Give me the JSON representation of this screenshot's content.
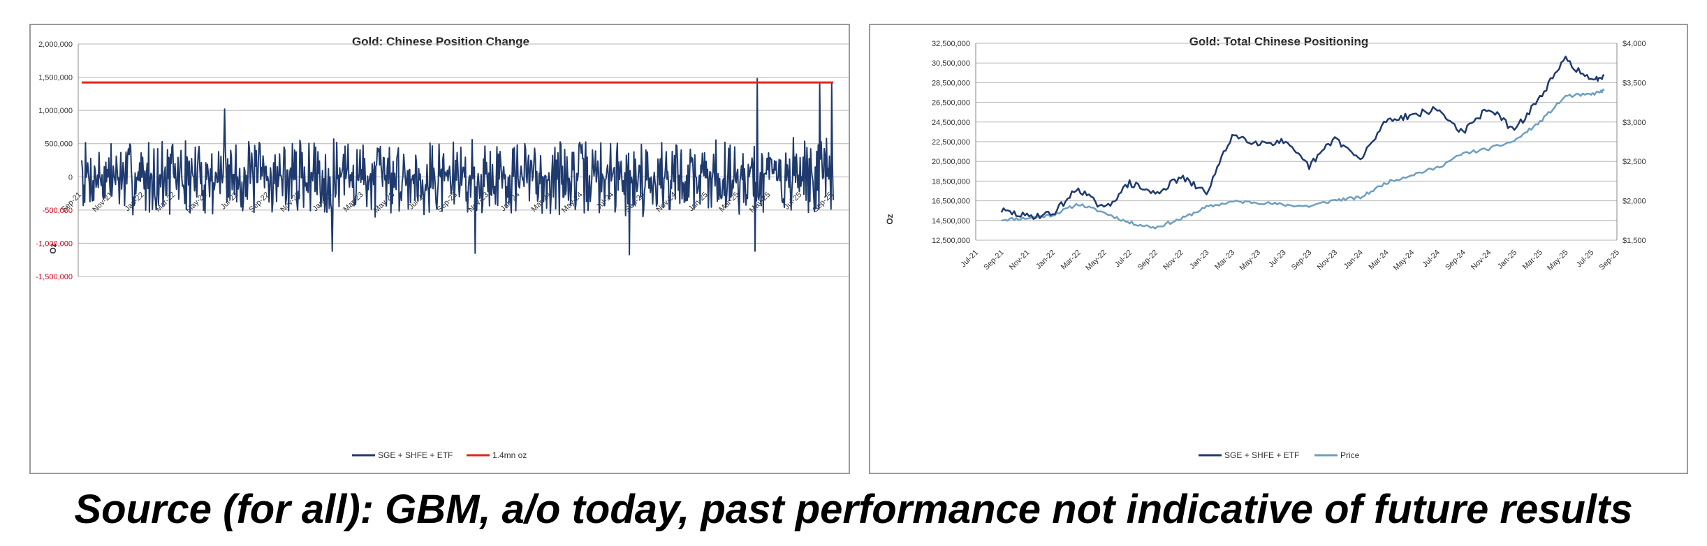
{
  "footer": {
    "source_text": "Source (for all): GBM, a/o today, past performance not indicative of future results"
  },
  "chart_data": [
    {
      "type": "line",
      "title": "Gold: Chinese Position Change",
      "ylabel": "Oz",
      "xlabel": "",
      "ylim": [
        -1500000,
        2000000
      ],
      "y_ticks": [
        "2,000,000",
        "1,500,000",
        "1,000,000",
        "500,000",
        "0",
        "-500,000",
        "-1,000,000",
        "-1,500,000"
      ],
      "negative_tick_color": "#d0021b",
      "x_ticks": [
        "Sep-21",
        "Nov-21",
        "Jan-22",
        "Mar-22",
        "May-22",
        "Jul-22",
        "Sep-22",
        "Nov-22",
        "Jan-23",
        "Mar-23",
        "May-23",
        "Jul-23",
        "Sep-23",
        "Nov-23",
        "Jan-24",
        "Mar-24",
        "May-24",
        "Jul-24",
        "Sep-24",
        "Nov-24",
        "Jan-25",
        "Mar-25",
        "May-25",
        "Jul-25",
        "Sep-25"
      ],
      "grid": true,
      "legend": "bottom",
      "series": [
        {
          "name": "SGE + SHFE + ETF",
          "color": "#1f3a6e",
          "extremes": [
            {
              "date": "Sep-21",
              "value": 250000
            },
            {
              "date": "Jun-22",
              "value": 1020000
            },
            {
              "date": "Jan-23",
              "value": -1120000
            },
            {
              "date": "Oct-23",
              "value": -1150000
            },
            {
              "date": "Aug-24",
              "value": -1170000
            },
            {
              "date": "Apr-25",
              "value": 1480000
            },
            {
              "date": "Apr-25",
              "value": -1120000
            },
            {
              "date": "Aug-25",
              "value": 1400000
            },
            {
              "date": "Sep-25",
              "value": -350000
            }
          ]
        },
        {
          "name": "1.4mn oz",
          "color": "#e0261a",
          "values": [
            1420000,
            1420000
          ]
        }
      ]
    },
    {
      "type": "line",
      "title": "Gold: Total Chinese Positioning",
      "ylabel": "Oz",
      "xlabel": "",
      "ylim": [
        12500000,
        32500000
      ],
      "y2lim": [
        1500,
        4000
      ],
      "y_ticks": [
        "32,500,000",
        "30,500,000",
        "28,500,000",
        "26,500,000",
        "24,500,000",
        "22,500,000",
        "20,500,000",
        "18,500,000",
        "16,500,000",
        "14,500,000",
        "12,500,000"
      ],
      "y2_ticks": [
        "$4,000",
        "$3,500",
        "$3,000",
        "$2,500",
        "$2,000",
        "$1,500"
      ],
      "x_ticks": [
        "Jul-21",
        "Sep-21",
        "Nov-21",
        "Jan-22",
        "Mar-22",
        "May-22",
        "Jul-22",
        "Sep-22",
        "Nov-22",
        "Jan-23",
        "Mar-23",
        "May-23",
        "Jul-23",
        "Sep-23",
        "Nov-23",
        "Jan-24",
        "Mar-24",
        "May-24",
        "Jul-24",
        "Sep-24",
        "Nov-24",
        "Jan-25",
        "Mar-25",
        "May-25",
        "Jul-25",
        "Sep-25"
      ],
      "grid": true,
      "legend": "bottom",
      "series": [
        {
          "name": "SGE + SHFE + ETF",
          "color": "#1f3a6e",
          "axis": "left",
          "x": [
            "Sep-21",
            "Nov-21",
            "Jan-22",
            "Mar-22",
            "May-22",
            "Jul-22",
            "Sep-22",
            "Nov-22",
            "Jan-23",
            "Mar-23",
            "May-23",
            "Jul-23",
            "Sep-23",
            "Nov-23",
            "Jan-24",
            "Mar-24",
            "May-24",
            "Jul-24",
            "Sep-24",
            "Nov-24",
            "Jan-25",
            "Mar-25",
            "May-25",
            "Jul-25",
            "Aug-25"
          ],
          "values": [
            15500000,
            14900000,
            15200000,
            17800000,
            15600000,
            18300000,
            17200000,
            18900000,
            17300000,
            23200000,
            22400000,
            22500000,
            20000000,
            22900000,
            20600000,
            24700000,
            25200000,
            25800000,
            23400000,
            26000000,
            23600000,
            27000000,
            30900000,
            28600000,
            29300000
          ]
        },
        {
          "name": "Price",
          "color": "#6e9fbf",
          "axis": "right",
          "x": [
            "Sep-21",
            "Nov-21",
            "Jan-22",
            "Mar-22",
            "May-22",
            "Jul-22",
            "Sep-22",
            "Nov-22",
            "Jan-23",
            "Mar-23",
            "May-23",
            "Jul-23",
            "Sep-23",
            "Nov-23",
            "Jan-24",
            "Mar-24",
            "May-24",
            "Jul-24",
            "Sep-24",
            "Nov-24",
            "Jan-25",
            "Mar-25",
            "May-25",
            "Jul-25",
            "Aug-25"
          ],
          "values": [
            1760,
            1780,
            1820,
            1960,
            1850,
            1720,
            1660,
            1770,
            1920,
            1990,
            1980,
            1950,
            1930,
            2010,
            2040,
            2230,
            2330,
            2420,
            2600,
            2660,
            2760,
            3000,
            3330,
            3350,
            3400
          ]
        }
      ]
    }
  ]
}
